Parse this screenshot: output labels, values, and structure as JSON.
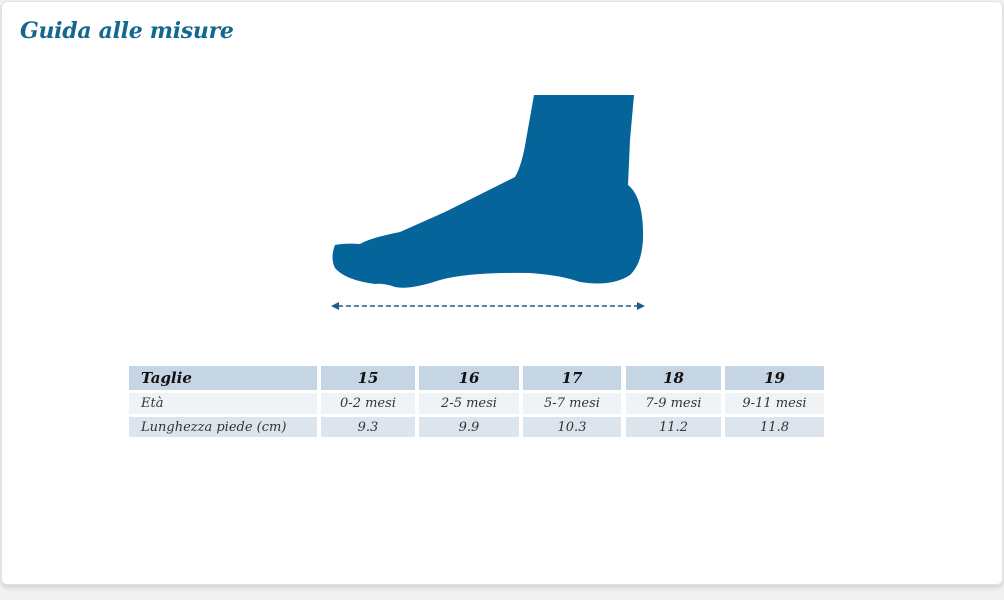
{
  "title": "Guida alle misure",
  "colors": {
    "accent": "#14678f",
    "foot": "#05649a",
    "header_bg": "#c5d5e4"
  },
  "illustration": {
    "icon": "foot-silhouette-icon",
    "measure": "double-arrow-dashed"
  },
  "table": {
    "header": {
      "label": "Taglie",
      "values": [
        "15",
        "16",
        "17",
        "18",
        "19"
      ]
    },
    "rows": [
      {
        "label": "Età",
        "values": [
          "0-2 mesi",
          "2-5 mesi",
          "5-7 mesi",
          "7-9 mesi",
          "9-11 mesi"
        ]
      },
      {
        "label": "Lunghezza piede (cm)",
        "values": [
          "9.3",
          "9.9",
          "10.3",
          "11.2",
          "11.8"
        ]
      }
    ]
  }
}
